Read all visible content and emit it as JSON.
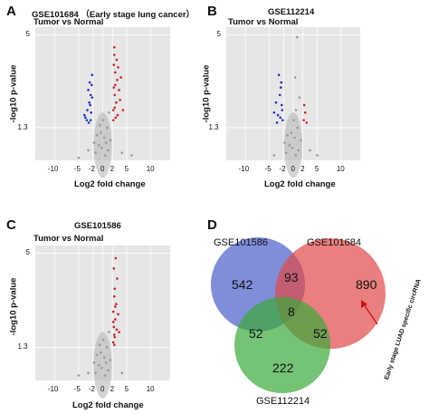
{
  "chart_data": [
    {
      "type": "scatter",
      "panel": "A",
      "title": "GSE101684 （Early stage lung cancer）",
      "subtitle": "Tumor vs Normal",
      "xlabel": "Log2 fold change",
      "ylabel": "-log10 p-value",
      "xlim": [
        -14,
        14
      ],
      "ylim": [
        0,
        5.3
      ],
      "xticks": [
        "-10",
        "-5",
        "-2",
        "0",
        "2",
        "5",
        "10"
      ],
      "xtick_values": [
        -10,
        -5,
        -2,
        0,
        2,
        5,
        10
      ],
      "yticks": [
        "5",
        "1.3"
      ],
      "ytick_values": [
        5,
        1.3
      ],
      "hline": 1.3,
      "vlines": [
        -2,
        2
      ],
      "grid": true,
      "series": [
        {
          "color": "#2030c8",
          "points": [
            [
              -3.2,
              2.0
            ],
            [
              -2.8,
              2.3
            ],
            [
              -2.5,
              2.6
            ],
            [
              -3.6,
              1.7
            ],
            [
              -2.3,
              3.0
            ],
            [
              -2.9,
              1.5
            ],
            [
              -2.2,
              3.4
            ],
            [
              -3.0,
              2.8
            ],
            [
              -2.4,
              1.9
            ],
            [
              -2.6,
              2.2
            ],
            [
              -3.3,
              1.6
            ],
            [
              -2.2,
              2.5
            ],
            [
              -2.7,
              3.1
            ],
            [
              -3.8,
              1.8
            ],
            [
              -2.5,
              1.6
            ]
          ]
        },
        {
          "color": "#d42020",
          "points": [
            [
              2.2,
              2.0
            ],
            [
              2.5,
              2.6
            ],
            [
              3.0,
              3.2
            ],
            [
              2.3,
              3.8
            ],
            [
              2.8,
              2.3
            ],
            [
              3.4,
              2.8
            ],
            [
              2.4,
              4.2
            ],
            [
              3.1,
              1.8
            ],
            [
              2.6,
              3.5
            ],
            [
              2.2,
              1.6
            ],
            [
              3.6,
              2.4
            ],
            [
              2.9,
              4.0
            ],
            [
              2.3,
              2.9
            ],
            [
              3.8,
              3.3
            ],
            [
              2.7,
              1.7
            ],
            [
              2.5,
              2.1
            ],
            [
              3.2,
              3.7
            ],
            [
              2.4,
              4.5
            ],
            [
              4.2,
              2.0
            ],
            [
              2.6,
              3.0
            ]
          ]
        },
        {
          "color": "#9a9a9a",
          "points": [
            [
              -1.5,
              0.3
            ],
            [
              -0.8,
              0.6
            ],
            [
              0.3,
              0.9
            ],
            [
              1.1,
              0.4
            ],
            [
              -0.4,
              1.1
            ],
            [
              0.9,
              1.3
            ],
            [
              -1.2,
              1.0
            ],
            [
              0.5,
              0.2
            ],
            [
              1.6,
              0.8
            ],
            [
              -0.2,
              0.5
            ],
            [
              0.1,
              1.6
            ],
            [
              -1.8,
              0.7
            ],
            [
              1.3,
              1.9
            ],
            [
              -0.6,
              1.4
            ],
            [
              0.7,
              0.7
            ],
            [
              4.0,
              0.3
            ],
            [
              -3.0,
              0.4
            ],
            [
              6.0,
              0.2
            ],
            [
              -5.0,
              0.1
            ]
          ]
        }
      ]
    },
    {
      "type": "scatter",
      "panel": "B",
      "title": "GSE112214",
      "subtitle": "Tumor vs Normal",
      "xlabel": "Log2 fold change",
      "ylabel": "-log10 p-value",
      "xlim": [
        -14,
        14
      ],
      "ylim": [
        0,
        5.3
      ],
      "xticks": [
        "-10",
        "-5",
        "-2",
        "0",
        "2",
        "5",
        "10"
      ],
      "xtick_values": [
        -10,
        -5,
        -2,
        0,
        2,
        5,
        10
      ],
      "yticks": [
        "5",
        "1.3"
      ],
      "ytick_values": [
        5,
        1.3
      ],
      "hline": 1.3,
      "vlines": [
        -2,
        2
      ],
      "grid": true,
      "series": [
        {
          "color": "#2030c8",
          "points": [
            [
              -2.3,
              2.0
            ],
            [
              -2.8,
              2.6
            ],
            [
              -3.2,
              1.8
            ],
            [
              -2.5,
              3.1
            ],
            [
              -3.6,
              2.3
            ],
            [
              -2.2,
              1.6
            ],
            [
              -4.0,
              1.9
            ],
            [
              -2.6,
              2.9
            ],
            [
              -3.0,
              3.4
            ],
            [
              -2.4,
              2.2
            ],
            [
              -3.4,
              1.5
            ],
            [
              -2.7,
              1.7
            ]
          ]
        },
        {
          "color": "#d42020",
          "points": [
            [
              2.2,
              1.6
            ],
            [
              2.5,
              1.9
            ],
            [
              2.3,
              2.2
            ],
            [
              2.8,
              1.5
            ]
          ]
        },
        {
          "color": "#9a9a9a",
          "points": [
            [
              -1.5,
              0.3
            ],
            [
              -0.8,
              0.6
            ],
            [
              0.3,
              0.9
            ],
            [
              1.1,
              0.4
            ],
            [
              -0.4,
              1.1
            ],
            [
              0.9,
              1.3
            ],
            [
              -1.2,
              1.0
            ],
            [
              0.5,
              0.2
            ],
            [
              1.6,
              0.8
            ],
            [
              -0.2,
              0.5
            ],
            [
              0.1,
              1.6
            ],
            [
              -1.8,
              0.7
            ],
            [
              1.3,
              2.5
            ],
            [
              0.4,
              3.3
            ],
            [
              0.8,
              4.9
            ],
            [
              0.6,
              2.0
            ],
            [
              3.5,
              0.4
            ],
            [
              5.0,
              0.2
            ],
            [
              -4.0,
              0.2
            ]
          ]
        }
      ]
    },
    {
      "type": "scatter",
      "panel": "C",
      "title": "GSE101586",
      "subtitle": "Tumor vs Normal",
      "xlabel": "Log2 fold change",
      "ylabel": "-log10 p-value",
      "xlim": [
        -14,
        14
      ],
      "ylim": [
        0,
        5.3
      ],
      "xticks": [
        "-10",
        "-5",
        "-2",
        "0",
        "2",
        "5",
        "10"
      ],
      "xtick_values": [
        -10,
        -5,
        -2,
        0,
        2,
        5,
        10
      ],
      "yticks": [
        "5",
        "1.3"
      ],
      "ytick_values": [
        5,
        1.3
      ],
      "hline": 1.3,
      "vlines": [
        -2,
        2
      ],
      "grid": true,
      "series": [
        {
          "color": "#d42020",
          "points": [
            [
              2.2,
              1.5
            ],
            [
              2.4,
              1.8
            ],
            [
              2.3,
              2.1
            ],
            [
              2.6,
              2.4
            ],
            [
              2.2,
              2.7
            ],
            [
              2.8,
              3.0
            ],
            [
              2.4,
              3.3
            ],
            [
              2.5,
              3.6
            ],
            [
              3.0,
              4.0
            ],
            [
              2.3,
              4.4
            ],
            [
              2.7,
              4.8
            ],
            [
              2.5,
              1.7
            ],
            [
              2.9,
              2.0
            ],
            [
              2.2,
              2.3
            ],
            [
              3.2,
              2.6
            ],
            [
              2.4,
              1.4
            ],
            [
              2.6,
              2.9
            ],
            [
              3.4,
              1.9
            ]
          ]
        },
        {
          "color": "#9a9a9a",
          "points": [
            [
              -1.5,
              0.3
            ],
            [
              -0.8,
              0.6
            ],
            [
              0.3,
              0.9
            ],
            [
              1.1,
              0.4
            ],
            [
              -0.4,
              1.1
            ],
            [
              0.9,
              1.3
            ],
            [
              -1.2,
              1.0
            ],
            [
              0.5,
              0.2
            ],
            [
              1.6,
              0.8
            ],
            [
              -0.2,
              0.5
            ],
            [
              0.1,
              1.6
            ],
            [
              -1.8,
              0.7
            ],
            [
              1.3,
              1.9
            ],
            [
              -0.6,
              1.4
            ],
            [
              0.7,
              0.7
            ],
            [
              -3.0,
              0.3
            ],
            [
              -5.0,
              0.2
            ],
            [
              4.0,
              0.3
            ]
          ]
        }
      ]
    },
    {
      "type": "venn",
      "panel": "D",
      "sets": [
        "GSE101586",
        "GSE101684",
        "GSE112214"
      ],
      "colors": [
        "#4a5cc8",
        "#e04848",
        "#3aaa3a"
      ],
      "regions": {
        "GSE101586_only": "542",
        "GSE101684_only": "890",
        "GSE112214_only": "222",
        "GSE101586_GSE101684": "93",
        "GSE101586_GSE112214": "52",
        "GSE101684_GSE112214": "52",
        "all_three": "8"
      },
      "annotation": "Early stage LUAD specific circRNA"
    }
  ]
}
